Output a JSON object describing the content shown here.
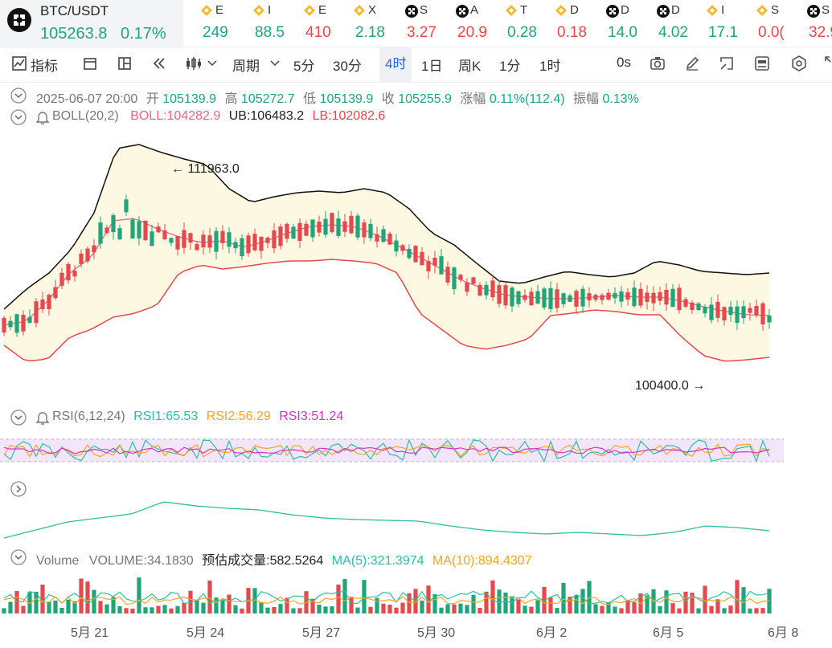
{
  "ticker": {
    "main": {
      "symbol": "BTC/USDT",
      "price": "105263.8",
      "change": "0.17%"
    },
    "items": [
      {
        "icon": "bnb-icon",
        "name": "E",
        "price": "249",
        "dir": "up",
        "x": 238
      },
      {
        "icon": "bnb-icon",
        "name": "I",
        "price": "88.5",
        "dir": "up",
        "x": 303
      },
      {
        "icon": "bnb-icon",
        "name": "E",
        "price": "410",
        "dir": "dn",
        "x": 366
      },
      {
        "icon": "bnb-icon",
        "name": "X",
        "price": "2.18",
        "dir": "up",
        "x": 428
      },
      {
        "icon": "chain-icon",
        "name": "S",
        "price": "3.27",
        "dir": "dn",
        "x": 492
      },
      {
        "icon": "chain-icon",
        "name": "A",
        "price": "20.9",
        "dir": "dn",
        "x": 555
      },
      {
        "icon": "bnb-icon",
        "name": "T",
        "price": "0.28",
        "dir": "up",
        "x": 617
      },
      {
        "icon": "bnb-icon",
        "name": "D",
        "price": "0.18",
        "dir": "dn",
        "x": 679
      },
      {
        "icon": "chain-icon",
        "name": "D",
        "price": "14.0",
        "dir": "up",
        "x": 742
      },
      {
        "icon": "chain-icon",
        "name": "D",
        "price": "4.02",
        "dir": "up",
        "x": 805
      },
      {
        "icon": "bnb-icon",
        "name": "I",
        "price": "17.1",
        "dir": "up",
        "x": 867
      },
      {
        "icon": "bnb-icon",
        "name": "S",
        "price": "0.0(",
        "dir": "dn",
        "x": 929
      },
      {
        "icon": "chain-icon",
        "name": "S",
        "price": "32.9",
        "dir": "dn",
        "x": 992
      }
    ]
  },
  "toolbar": {
    "indicators": "指标",
    "period": "周期",
    "intervals": [
      "5分",
      "30分",
      "4时",
      "1日",
      "周K",
      "1分",
      "1时"
    ],
    "active_interval": "4时",
    "countdown": "0s"
  },
  "candle_info": {
    "time": "2025-06-07 20:00",
    "open_label": "开",
    "open": "105139.9",
    "high_label": "高",
    "high": "105272.7",
    "low_label": "低",
    "low": "105139.9",
    "close_label": "收",
    "close": "105255.9",
    "change_label": "涨幅",
    "change": "0.11%(112.4)",
    "amp_label": "振幅",
    "amp": "0.13%"
  },
  "boll": {
    "name": "BOLL(20,2)",
    "boll": "BOLL:104282.9",
    "ub": "UB:106483.2",
    "lb": "LB:102082.6"
  },
  "price_marks": {
    "high": "111963.0",
    "low": "100400.0"
  },
  "rsi": {
    "name": "RSI(6,12,24)",
    "rsi1": "RSI1:65.53",
    "rsi2": "RSI2:56.29",
    "rsi3": "RSI3:51.24"
  },
  "volume": {
    "name": "Volume",
    "vol": "VOLUME:34.1830",
    "est": "预估成交量:582.5264",
    "ma5": "MA(5):321.3974",
    "ma10": "MA(10):894.4307"
  },
  "x_axis": [
    "5月 21",
    "5月 24",
    "5月 27",
    "5月 30",
    "6月 2",
    "6月 5",
    "6月 8"
  ],
  "colors": {
    "up": "#1fa57a",
    "down": "#e5484d",
    "boll": "#e9668a",
    "ub": "#111111",
    "lb": "#e5484d",
    "band": "#fdf8e1",
    "rsi1": "#2bbfa4",
    "rsi2": "#f5a623",
    "rsi3": "#d633c2",
    "accent": "#2962ff"
  },
  "chart_data": {
    "type": "candlestick",
    "x_axis_labels": [
      "5月 21",
      "5月 24",
      "5月 27",
      "5月 30",
      "6月 2",
      "6月 5",
      "6月 8"
    ],
    "price_high": 111963.0,
    "price_low": 100400.0,
    "last": {
      "open": 105139.9,
      "high": 105272.7,
      "low": 105139.9,
      "close": 105255.9
    }
  }
}
